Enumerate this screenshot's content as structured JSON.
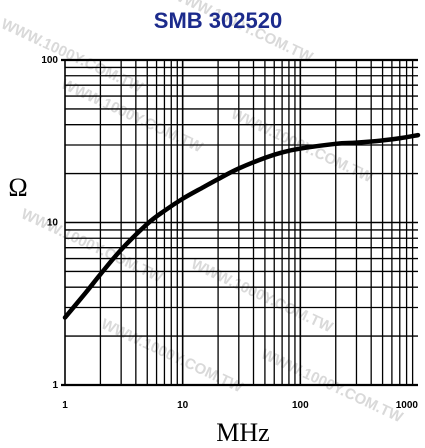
{
  "chart_data": {
    "type": "line",
    "title": "SMB 302520",
    "xlabel": "MHz",
    "ylabel": "Ω",
    "x_scale": "log",
    "y_scale": "log",
    "xlim": [
      1,
      1000
    ],
    "ylim": [
      1,
      100
    ],
    "x_ticks": [
      "1",
      "10",
      "100",
      "1000"
    ],
    "y_ticks": [
      "1",
      "10",
      "100"
    ],
    "grid": true,
    "series": [
      {
        "color": "#000000",
        "points": [
          {
            "x": 1,
            "y": 2.6
          },
          {
            "x": 1.5,
            "y": 3.7
          },
          {
            "x": 2,
            "y": 4.8
          },
          {
            "x": 3,
            "y": 6.8
          },
          {
            "x": 5,
            "y": 9.8
          },
          {
            "x": 7,
            "y": 11.8
          },
          {
            "x": 10,
            "y": 14
          },
          {
            "x": 15,
            "y": 16.5
          },
          {
            "x": 20,
            "y": 18.5
          },
          {
            "x": 30,
            "y": 21.5
          },
          {
            "x": 50,
            "y": 25
          },
          {
            "x": 70,
            "y": 27
          },
          {
            "x": 100,
            "y": 28.5
          },
          {
            "x": 200,
            "y": 30.5
          },
          {
            "x": 300,
            "y": 31
          },
          {
            "x": 500,
            "y": 32
          },
          {
            "x": 700,
            "y": 33
          },
          {
            "x": 1000,
            "y": 34.5
          }
        ]
      }
    ],
    "watermark": "WWW.1000Y.COM.TW"
  }
}
